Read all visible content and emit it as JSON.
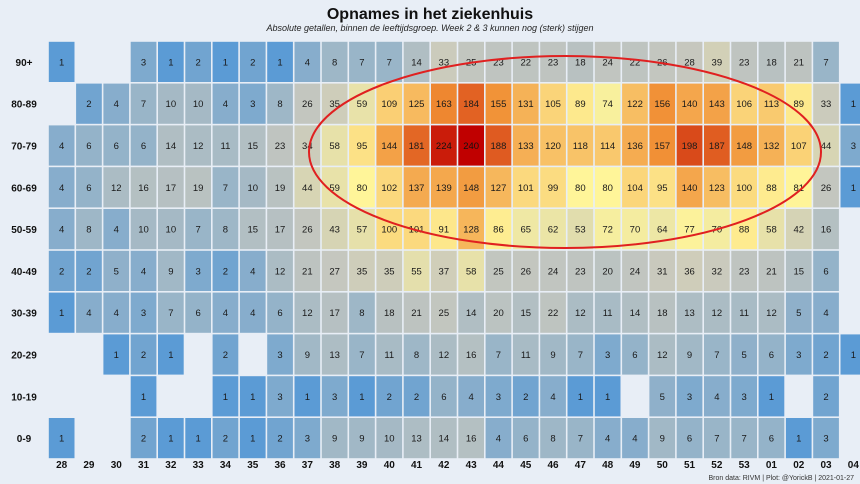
{
  "chart_data": {
    "type": "heatmap",
    "title": "Opnames in het ziekenhuis",
    "subtitle": "Absolute getallen, binnen de leeftijdsgroep. Week 2 & 3 kunnen nog (sterk) stijgen",
    "footer": "Bron data: RIVM | Plot: @YorickB |  2021-01-27",
    "weeks": [
      "28",
      "29",
      "30",
      "31",
      "32",
      "33",
      "34",
      "35",
      "36",
      "37",
      "38",
      "39",
      "40",
      "41",
      "42",
      "43",
      "44",
      "45",
      "46",
      "47",
      "48",
      "49",
      "50",
      "51",
      "52",
      "53",
      "01",
      "02",
      "03",
      "04"
    ],
    "age_groups": [
      "90+",
      "80-89",
      "70-79",
      "60-69",
      "50-59",
      "40-49",
      "30-39",
      "20-29",
      "10-19",
      "0-9"
    ],
    "values": [
      [
        1,
        null,
        null,
        3,
        1,
        2,
        1,
        2,
        1,
        4,
        8,
        7,
        7,
        14,
        33,
        25,
        23,
        22,
        23,
        18,
        24,
        22,
        26,
        28,
        39,
        23,
        18,
        21,
        7,
        null
      ],
      [
        null,
        2,
        4,
        7,
        10,
        10,
        4,
        3,
        8,
        26,
        35,
        59,
        109,
        125,
        163,
        184,
        155,
        131,
        105,
        89,
        74,
        122,
        156,
        140,
        143,
        106,
        113,
        89,
        33,
        1
      ],
      [
        4,
        6,
        6,
        6,
        14,
        12,
        11,
        15,
        23,
        34,
        58,
        95,
        144,
        181,
        224,
        240,
        188,
        133,
        120,
        118,
        114,
        136,
        157,
        198,
        187,
        148,
        132,
        107,
        44,
        3
      ],
      [
        4,
        6,
        12,
        16,
        17,
        19,
        7,
        10,
        19,
        44,
        59,
        80,
        102,
        137,
        139,
        148,
        127,
        101,
        99,
        80,
        80,
        104,
        95,
        140,
        123,
        100,
        88,
        81,
        26,
        1
      ],
      [
        4,
        8,
        4,
        10,
        10,
        7,
        8,
        15,
        17,
        26,
        43,
        57,
        100,
        101,
        91,
        128,
        86,
        65,
        62,
        53,
        72,
        70,
        64,
        77,
        70,
        88,
        58,
        42,
        16,
        null
      ],
      [
        2,
        2,
        5,
        4,
        9,
        3,
        2,
        4,
        12,
        21,
        27,
        35,
        35,
        55,
        37,
        58,
        25,
        26,
        24,
        23,
        20,
        24,
        31,
        36,
        32,
        23,
        21,
        15,
        6,
        null
      ],
      [
        1,
        4,
        4,
        3,
        7,
        6,
        4,
        4,
        6,
        12,
        17,
        8,
        18,
        21,
        25,
        14,
        20,
        15,
        22,
        12,
        11,
        14,
        18,
        13,
        12,
        11,
        12,
        5,
        4,
        null
      ],
      [
        null,
        null,
        1,
        2,
        1,
        null,
        2,
        null,
        3,
        9,
        13,
        7,
        11,
        8,
        12,
        16,
        7,
        11,
        9,
        7,
        3,
        6,
        12,
        9,
        7,
        5,
        6,
        3,
        2,
        1
      ],
      [
        null,
        null,
        null,
        1,
        null,
        null,
        1,
        1,
        3,
        1,
        3,
        1,
        2,
        2,
        6,
        4,
        3,
        2,
        4,
        1,
        1,
        null,
        5,
        3,
        4,
        3,
        1,
        null,
        2,
        null
      ],
      [
        1,
        null,
        null,
        2,
        1,
        1,
        2,
        1,
        2,
        3,
        9,
        9,
        10,
        13,
        14,
        16,
        4,
        6,
        8,
        7,
        4,
        4,
        9,
        6,
        7,
        7,
        6,
        1,
        3,
        null
      ]
    ],
    "color_scale": {
      "low": "#5b9bd5",
      "mid": "#fff599",
      "high": "#c00000"
    },
    "annotation": {
      "type": "ellipse",
      "color": "#e02020"
    }
  }
}
